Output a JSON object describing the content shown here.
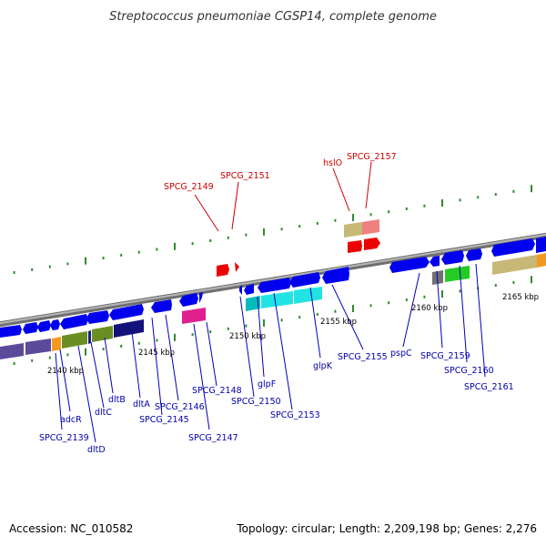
{
  "title": "Streptococcus pneumoniae CGSP14, complete genome",
  "footer": {
    "accession": "Accession: NC_010582",
    "summary": "Topology: circular; Length: 2,209,198 bp; Genes: 2,276"
  },
  "colors": {
    "forward_gene": "#0000ee",
    "reverse_gene": "#0000ee",
    "rna_gene": "#ee0000",
    "label_gene": "#0000aa",
    "label_rna": "#cc0000",
    "backbone": "#8c8c8c",
    "tick": "#2e8b2e"
  },
  "kbp_labels": [
    "2140 kbp",
    "2145 kbp",
    "2150 kbp",
    "2155 kbp",
    "2160 kbp",
    "2165 kbp"
  ],
  "gene_labels": [
    {
      "text": "adcR",
      "color": "blue"
    },
    {
      "text": "SPCG_2139",
      "color": "blue"
    },
    {
      "text": "dltD",
      "color": "blue"
    },
    {
      "text": "dltC",
      "color": "blue"
    },
    {
      "text": "dltB",
      "color": "blue"
    },
    {
      "text": "dltA",
      "color": "blue"
    },
    {
      "text": "SPCG_2145",
      "color": "blue"
    },
    {
      "text": "SPCG_2146",
      "color": "blue"
    },
    {
      "text": "SPCG_2147",
      "color": "blue"
    },
    {
      "text": "SPCG_2148",
      "color": "blue"
    },
    {
      "text": "SPCG_2150",
      "color": "blue"
    },
    {
      "text": "glpF",
      "color": "blue"
    },
    {
      "text": "SPCG_2153",
      "color": "blue"
    },
    {
      "text": "glpK",
      "color": "blue"
    },
    {
      "text": "SPCG_2155",
      "color": "blue"
    },
    {
      "text": "pspC",
      "color": "blue"
    },
    {
      "text": "SPCG_2159",
      "color": "blue"
    },
    {
      "text": "SPCG_2160",
      "color": "blue"
    },
    {
      "text": "SPCG_2161",
      "color": "blue"
    },
    {
      "text": "SPCG_2149",
      "color": "red"
    },
    {
      "text": "SPCG_2151",
      "color": "red"
    },
    {
      "text": "hslO",
      "color": "red"
    },
    {
      "text": "SPCG_2157",
      "color": "red"
    }
  ]
}
